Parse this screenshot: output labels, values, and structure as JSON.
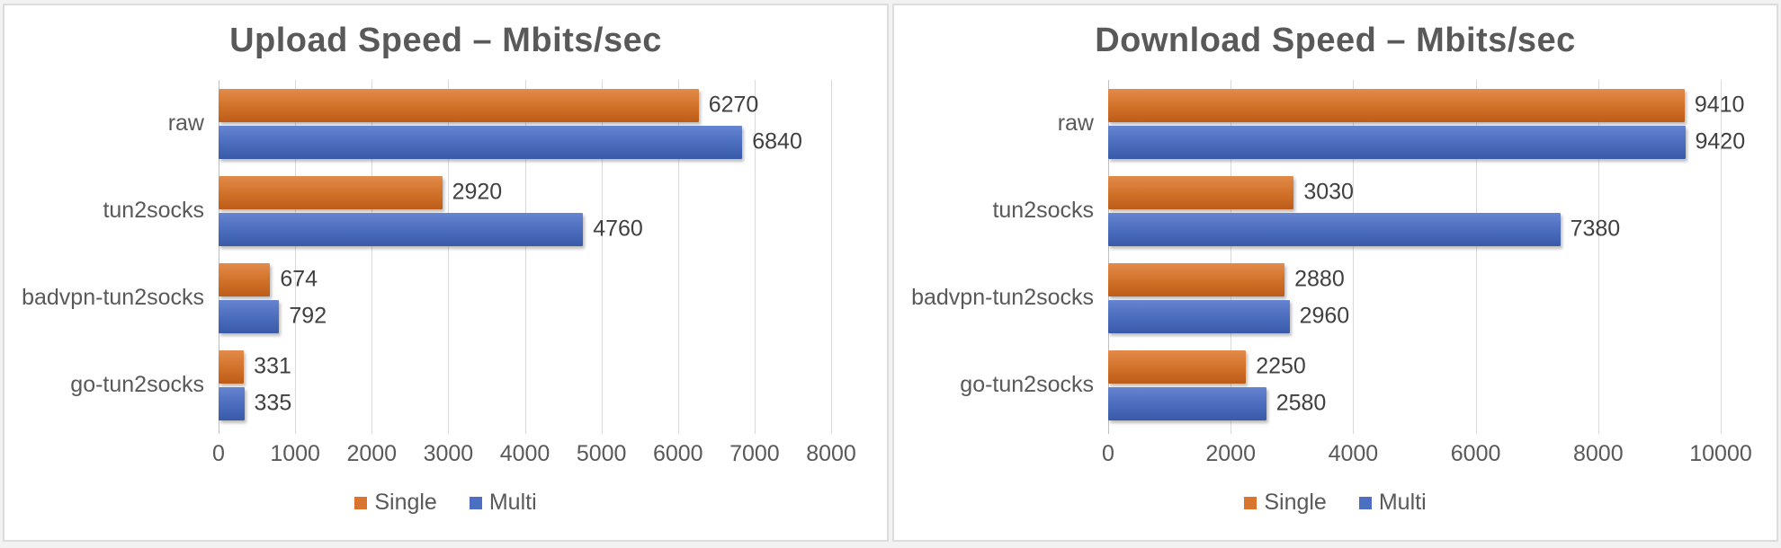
{
  "colors": {
    "single_accent": "#ED7D31",
    "multi_accent": "#4472C4",
    "text_gray": "#595959",
    "value_label_gray": "#404040",
    "gridline": "#D9D9D9"
  },
  "chart_data": [
    {
      "type": "bar",
      "orientation": "horizontal",
      "title": "Upload Speed – Mbits/sec",
      "xlabel": "",
      "ylabel": "",
      "categories": [
        "raw",
        "tun2socks",
        "badvpn-tun2socks",
        "go-tun2socks"
      ],
      "series": [
        {
          "name": "Single",
          "color": "#ED7D31",
          "values": [
            6270,
            2920,
            674,
            331
          ]
        },
        {
          "name": "Multi",
          "color": "#4472C4",
          "values": [
            6840,
            4760,
            792,
            335
          ]
        }
      ],
      "xlim": [
        0,
        8000
      ],
      "xticks": [
        0,
        1000,
        2000,
        3000,
        4000,
        5000,
        6000,
        7000,
        8000
      ],
      "grid": true,
      "legend_position": "bottom",
      "data_labels": true
    },
    {
      "type": "bar",
      "orientation": "horizontal",
      "title": "Download Speed – Mbits/sec",
      "xlabel": "",
      "ylabel": "",
      "categories": [
        "raw",
        "tun2socks",
        "badvpn-tun2socks",
        "go-tun2socks"
      ],
      "series": [
        {
          "name": "Single",
          "color": "#ED7D31",
          "values": [
            9410,
            3030,
            2880,
            2250
          ]
        },
        {
          "name": "Multi",
          "color": "#4472C4",
          "values": [
            9420,
            7380,
            2960,
            2580
          ]
        }
      ],
      "xlim": [
        0,
        10000
      ],
      "xticks": [
        0,
        2000,
        4000,
        6000,
        8000,
        10000
      ],
      "grid": true,
      "legend_position": "bottom",
      "data_labels": true
    }
  ]
}
